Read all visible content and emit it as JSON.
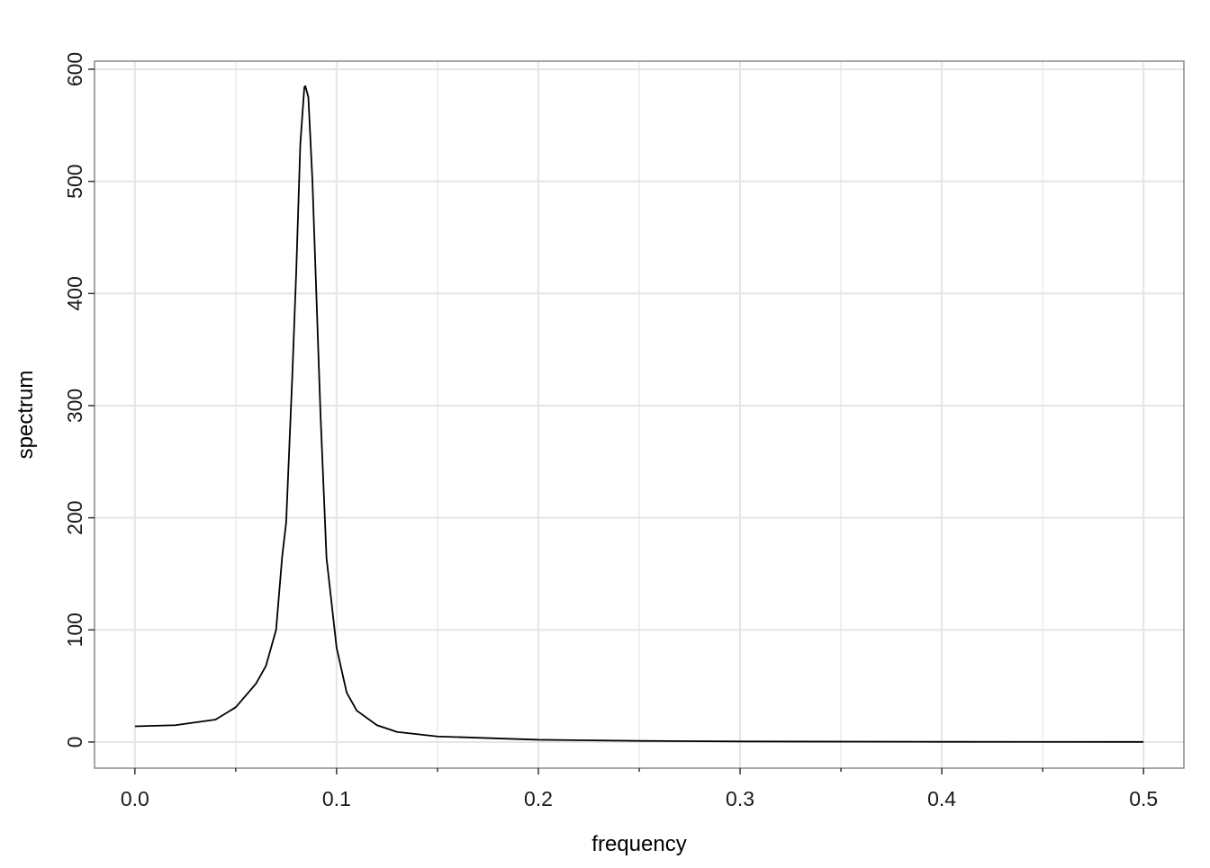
{
  "chart_data": {
    "type": "line",
    "x_label": "frequency",
    "y_label": "spectrum",
    "x": [
      0,
      0.02,
      0.04,
      0.05,
      0.06,
      0.065,
      0.07,
      0.073,
      0.075,
      0.078,
      0.08,
      0.082,
      0.084,
      0.0845,
      0.086,
      0.088,
      0.09,
      0.092,
      0.095,
      0.1,
      0.105,
      0.11,
      0.12,
      0.13,
      0.15,
      0.2,
      0.25,
      0.3,
      0.4,
      0.5
    ],
    "series": [
      {
        "color": "#000000",
        "values": [
          14,
          15,
          20,
          31,
          52,
          68,
          100,
          165,
          196,
          325,
          420,
          533,
          584,
          585,
          575,
          501,
          397,
          293,
          164,
          84,
          44,
          28,
          15,
          9,
          5,
          2,
          1,
          0.5,
          0.2,
          0.1
        ]
      }
    ],
    "xlim": [
      -0.02,
      0.52
    ],
    "ylim": [
      -23.3,
      607.2
    ],
    "xticks": [
      {
        "value": 0,
        "label": "0.0"
      },
      0.1,
      0.2,
      0.3,
      0.4,
      0.5
    ],
    "xminor": [
      0.05,
      0.15,
      0.25,
      0.35,
      0.45
    ],
    "yticks": [
      0,
      100,
      200,
      300,
      400,
      500,
      600
    ],
    "grid": true
  }
}
